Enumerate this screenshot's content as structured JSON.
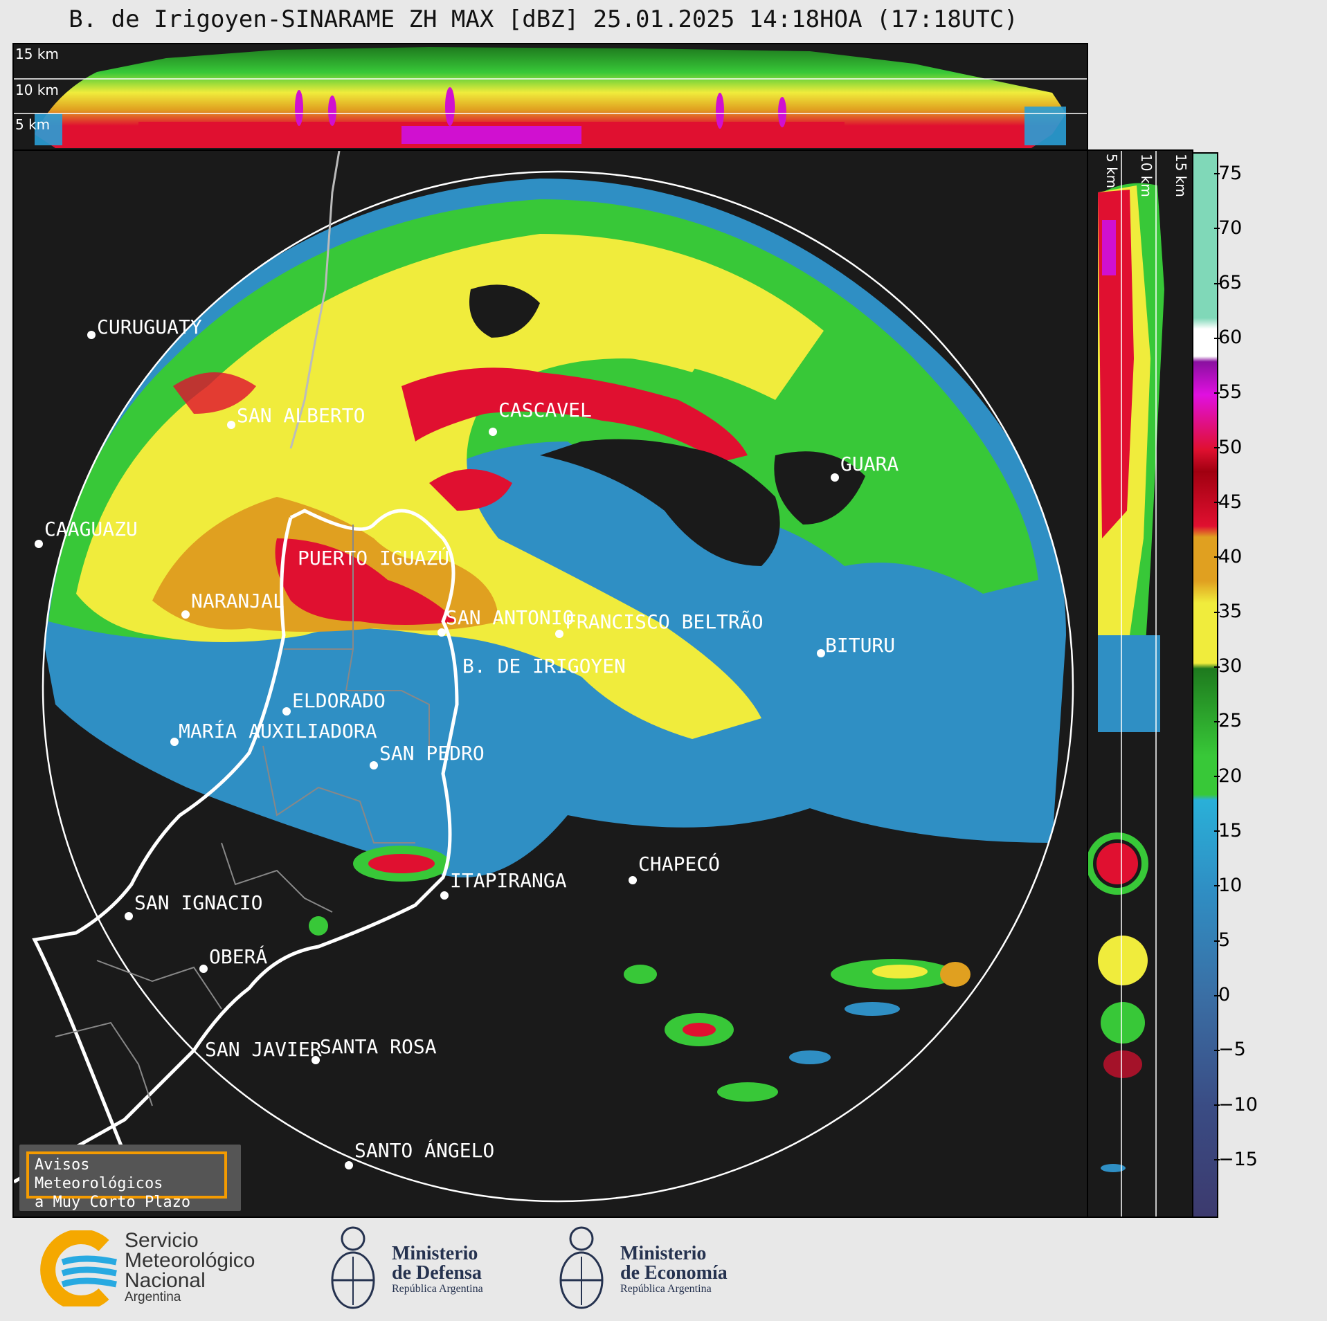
{
  "title": "B. de Irigoyen-SINARAME ZH MAX [dBZ] 25.01.2025 14:18HOA (17:18UTC)",
  "top_panel": {
    "height_labels": [
      "15 km",
      "10 km",
      "5 km"
    ]
  },
  "right_panel": {
    "height_labels": [
      "5 km",
      "10 km",
      "15 km"
    ]
  },
  "colorbar": {
    "unit": "dBZ",
    "ticks": [
      "75",
      "70",
      "65",
      "60",
      "55",
      "50",
      "45",
      "40",
      "35",
      "30",
      "25",
      "20",
      "15",
      "10",
      "5",
      "0",
      "−5",
      "−10",
      "−15"
    ],
    "min": -20,
    "max": 77,
    "colors": {
      "low": "#3c3a6e",
      "blue": "#2f8fc4",
      "cyan": "#2ab0d8",
      "green": "#38c838",
      "darkgreen": "#1e7a1e",
      "yellow": "#f0ec3c",
      "orange": "#e0a020",
      "red": "#e01030",
      "darkred": "#a00010",
      "magenta": "#e010e0",
      "purple": "#8a10a0",
      "white": "#ffffff",
      "teal": "#80d8b8"
    }
  },
  "cities": [
    {
      "name": "CURUGUATY"
    },
    {
      "name": "SAN ALBERTO"
    },
    {
      "name": "CASCAVEL"
    },
    {
      "name": "CAAGUAZU"
    },
    {
      "name": "PUERTO IGUAZÚ"
    },
    {
      "name": "GUARA"
    },
    {
      "name": "NARANJAL"
    },
    {
      "name": "SAN ANTONIO"
    },
    {
      "name": "FRANCISCO BELTRÃO"
    },
    {
      "name": "BITURU"
    },
    {
      "name": "B. DE IRIGOYEN"
    },
    {
      "name": "ELDORADO"
    },
    {
      "name": "MARÍA AUXILIADORA"
    },
    {
      "name": "SAN PEDRO"
    },
    {
      "name": "CHAPECÓ"
    },
    {
      "name": "ITAPIRANGA"
    },
    {
      "name": "SAN IGNACIO"
    },
    {
      "name": "OBERÁ"
    },
    {
      "name": "SAN JAVIER"
    },
    {
      "name": "SANTA ROSA"
    },
    {
      "name": "SANTO ÁNGELO"
    }
  ],
  "warning": {
    "line1": "Avisos Meteorológicos",
    "line2": "a Muy Corto Plazo"
  },
  "logos": {
    "smn": {
      "line1": "Servicio",
      "line2": "Meteorológico",
      "line3": "Nacional",
      "line4": "Argentina"
    },
    "defensa": {
      "line1": "Ministerio",
      "line2": "de Defensa",
      "line3": "República Argentina"
    },
    "economia": {
      "line1": "Ministerio",
      "line2": "de Economía",
      "line3": "República Argentina"
    }
  }
}
